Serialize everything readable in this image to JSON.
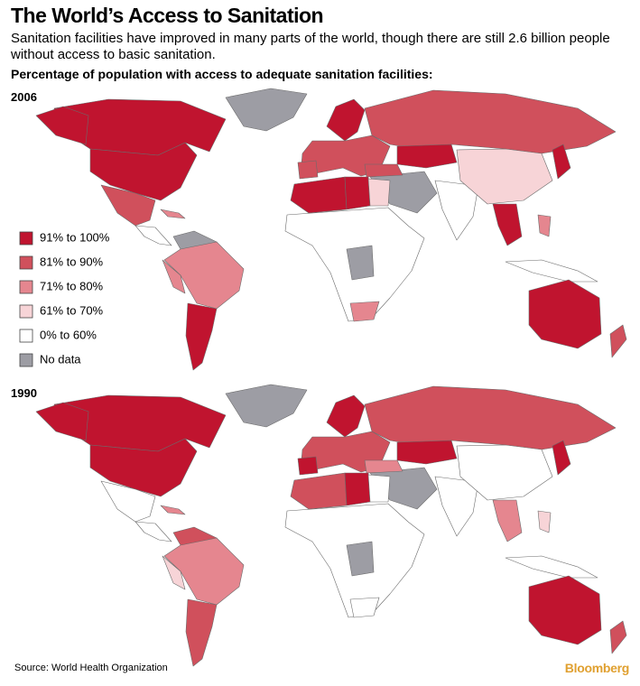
{
  "header": {
    "title": "The World’s Access to Sanitation",
    "subtitle": "Sanitation facilities have improved in many parts of the world, though there are still 2.6 billion people without access to basic sanitation.",
    "label": "Percentage of population with access to adequate sanitation facilities:"
  },
  "maps": [
    {
      "year": "2006"
    },
    {
      "year": "1990"
    }
  ],
  "legend": {
    "items": [
      {
        "label": "91% to 100%",
        "color": "#c0142f"
      },
      {
        "label": "81% to 90%",
        "color": "#d0505c"
      },
      {
        "label": "71% to 80%",
        "color": "#e5868f"
      },
      {
        "label": "61% to 70%",
        "color": "#f7d4d7"
      },
      {
        "label": "0% to 60%",
        "color": "#ffffff"
      },
      {
        "label": "No data",
        "color": "#9d9da4"
      }
    ]
  },
  "footer": {
    "source": "Source: World Health Organization",
    "brand": "Bloomberg"
  }
}
